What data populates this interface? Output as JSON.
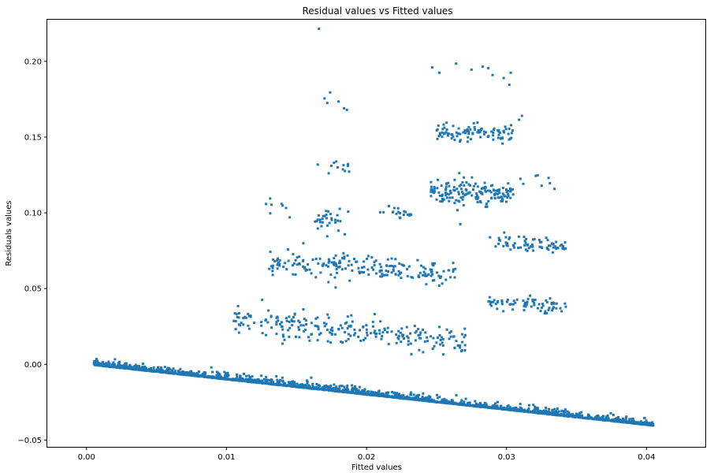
{
  "chart_data": {
    "type": "scatter",
    "title": "Residual values vs Fitted values",
    "xlabel": "Fitted values",
    "ylabel": "Residuals values",
    "xlim": [
      -0.0028,
      0.0442
    ],
    "ylim": [
      -0.0545,
      0.2275
    ],
    "x_ticks": [
      0.0,
      0.01,
      0.02,
      0.03,
      0.04
    ],
    "x_tick_labels": [
      "0.00",
      "0.01",
      "0.02",
      "0.03",
      "0.04"
    ],
    "y_ticks": [
      -0.05,
      0.0,
      0.05,
      0.1,
      0.15,
      0.2
    ],
    "y_tick_labels": [
      "−0.05",
      "0.00",
      "0.05",
      "0.10",
      "0.15",
      "0.20"
    ],
    "grid": false,
    "marker_color": "#1f77b4",
    "clusters": [
      {
        "x_range": [
          0.0005,
          0.0405
        ],
        "y_intercept": 0.0,
        "slope": -1.0,
        "n": 2400,
        "mode": "baseline"
      },
      {
        "x_range": [
          0.0105,
          0.0272
        ],
        "y_center": 0.022,
        "y_slope": -0.9,
        "y_spread": 0.0045,
        "n": 240
      },
      {
        "x_range": [
          0.013,
          0.0265
        ],
        "y_center": 0.0632,
        "y_slope": -0.55,
        "y_spread": 0.004,
        "n": 200
      },
      {
        "x_range": [
          0.0287,
          0.0343
        ],
        "y_center": 0.0395,
        "y_slope": -0.6,
        "y_spread": 0.0025,
        "n": 70
      },
      {
        "x_range": [
          0.0287,
          0.0343
        ],
        "y_center": 0.0795,
        "y_slope": -0.6,
        "y_spread": 0.0025,
        "n": 70
      },
      {
        "x_range": [
          0.0128,
          0.015
        ],
        "y_center": 0.105,
        "y_slope": 0.0,
        "y_spread": 0.004,
        "n": 8
      },
      {
        "x_range": [
          0.0163,
          0.0188
        ],
        "y_center": 0.0955,
        "y_slope": 0.0,
        "y_spread": 0.004,
        "n": 30
      },
      {
        "x_range": [
          0.0208,
          0.0232
        ],
        "y_center": 0.1005,
        "y_slope": 0.0,
        "y_spread": 0.0025,
        "n": 20
      },
      {
        "x_range": [
          0.0246,
          0.0305
        ],
        "y_center": 0.1135,
        "y_slope": 0.0,
        "y_spread": 0.004,
        "n": 170
      },
      {
        "x_range": [
          0.0305,
          0.0335
        ],
        "y_center": 0.121,
        "y_slope": 0.0,
        "y_spread": 0.003,
        "n": 8
      },
      {
        "x_range": [
          0.0165,
          0.0188
        ],
        "y_center": 0.132,
        "y_slope": 0.0,
        "y_spread": 0.003,
        "n": 12
      },
      {
        "x_range": [
          0.025,
          0.0305
        ],
        "y_center": 0.1525,
        "y_slope": 0.0,
        "y_spread": 0.003,
        "n": 95
      }
    ],
    "points": [
      [
        0.0166,
        0.2215
      ],
      [
        0.017,
        0.1755
      ],
      [
        0.0174,
        0.1795
      ],
      [
        0.0172,
        0.1725
      ],
      [
        0.018,
        0.1735
      ],
      [
        0.0184,
        0.169
      ],
      [
        0.0186,
        0.168
      ],
      [
        0.0247,
        0.196
      ],
      [
        0.0252,
        0.1925
      ],
      [
        0.0264,
        0.1985
      ],
      [
        0.0275,
        0.1945
      ],
      [
        0.0283,
        0.1965
      ],
      [
        0.0287,
        0.1955
      ],
      [
        0.029,
        0.191
      ],
      [
        0.0298,
        0.189
      ],
      [
        0.0302,
        0.1845
      ],
      [
        0.0303,
        0.1925
      ],
      [
        0.0309,
        0.1615
      ],
      [
        0.0311,
        0.164
      ],
      [
        0.0172,
        0.0845
      ],
      [
        0.0267,
        0.0925
      ],
      [
        0.0329,
        0.077
      ],
      [
        0.034,
        0.0765
      ]
    ]
  }
}
